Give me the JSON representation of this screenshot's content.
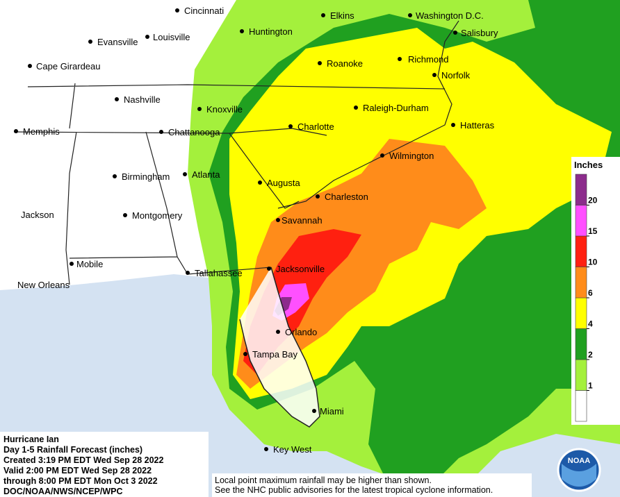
{
  "title_block": {
    "lines": [
      "Hurricane Ian",
      "Day 1-5 Rainfall Forecast (inches)",
      "Created 3:19 PM EDT Wed Sep 28 2022",
      "Valid 2:00 PM EDT Wed Sep 28 2022",
      "through 8:00 PM EDT Mon Oct 3 2022",
      "DOC/NOAA/NWS/NCEP/WPC"
    ]
  },
  "disclaimer": [
    "Local point maximum rainfall may be higher than shown.",
    "See the NHC public advisories for the latest tropical cyclone information."
  ],
  "legend": {
    "title": "Inches",
    "ticks": [
      1,
      2,
      4,
      6,
      10,
      15,
      20
    ],
    "colors": [
      "#ffffff",
      "#a4f03c",
      "#20a020",
      "#ffff00",
      "#ff8c1a",
      "#ff2010",
      "#ff50ff",
      "#8c2c8c"
    ]
  },
  "cities": [
    "Cincinnati",
    "Elkins",
    "Washington D.C.",
    "Evansville",
    "Louisville",
    "Huntington",
    "Salisbury",
    "Cape Girardeau",
    "Roanoke",
    "Richmond",
    "Norfolk",
    "Nashville",
    "Knoxville",
    "Raleigh-Durham",
    "Charlotte",
    "Hatteras",
    "Memphis",
    "Chattanooga",
    "Wilmington",
    "Birmingham",
    "Atlanta",
    "Augusta",
    "Charleston",
    "Jackson",
    "Montgomery",
    "Savannah",
    "Mobile",
    "Jacksonville",
    "Tallahassee",
    "New Orleans",
    "Orlando",
    "Tampa Bay",
    "Miami",
    "Key West"
  ],
  "logo": "NOAA"
}
